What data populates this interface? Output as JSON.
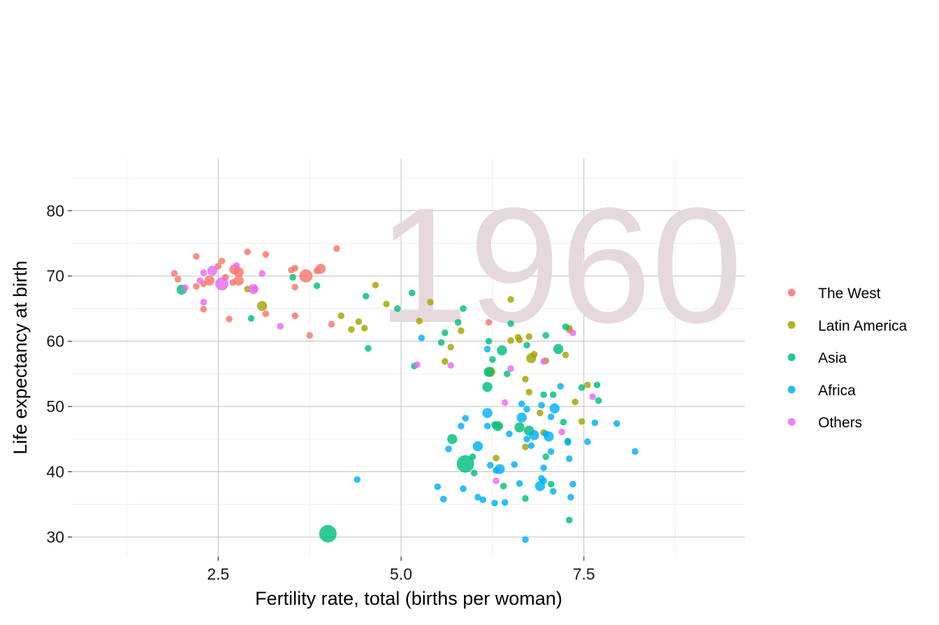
{
  "chart_data": {
    "type": "scatter",
    "xlabel": "Fertility rate, total (births per woman)",
    "ylabel": "Life expectancy at birth",
    "xlim": [
      0.5,
      9.7
    ],
    "ylim": [
      27,
      88
    ],
    "x_ticks": [
      2.5,
      5.0,
      7.5
    ],
    "x_tick_labels": [
      "2.5",
      "5.0",
      "7.5"
    ],
    "y_ticks": [
      30,
      40,
      50,
      60,
      70,
      80
    ],
    "y_tick_labels": [
      "30",
      "40",
      "50",
      "60",
      "70",
      "80"
    ],
    "grid": true,
    "legend_position": "right",
    "year_label": "1960",
    "colors": {
      "The West": "#f8766d",
      "Latin America": "#a3a500",
      "Asia": "#00bf7d",
      "Africa": "#00b0f6",
      "Others": "#e76bf3"
    },
    "series": [
      {
        "name": "The West",
        "points": [
          [
            1.9,
            70.4,
            1
          ],
          [
            1.95,
            69.5,
            1
          ],
          [
            2.2,
            73.0,
            1
          ],
          [
            2.2,
            68.4,
            1
          ],
          [
            2.3,
            68.8,
            1
          ],
          [
            2.3,
            64.9,
            1
          ],
          [
            2.38,
            69.3,
            2
          ],
          [
            2.5,
            71.5,
            1
          ],
          [
            2.55,
            72.3,
            1
          ],
          [
            2.6,
            69.8,
            1
          ],
          [
            2.65,
            63.4,
            1
          ],
          [
            2.7,
            69.0,
            1
          ],
          [
            2.72,
            71.0,
            2
          ],
          [
            2.78,
            69.3,
            2
          ],
          [
            2.78,
            70.6,
            2
          ],
          [
            2.9,
            73.7,
            1
          ],
          [
            3.0,
            68.0,
            1
          ],
          [
            3.15,
            64.2,
            1
          ],
          [
            3.15,
            73.3,
            1
          ],
          [
            3.5,
            70.9,
            1
          ],
          [
            3.55,
            71.2,
            1
          ],
          [
            3.55,
            68.3,
            1
          ],
          [
            3.55,
            63.9,
            1
          ],
          [
            3.7,
            70.0,
            3
          ],
          [
            3.75,
            60.9,
            1
          ],
          [
            3.85,
            70.8,
            1
          ],
          [
            3.9,
            71.1,
            2
          ],
          [
            4.05,
            62.6,
            1
          ],
          [
            4.12,
            74.2,
            1
          ],
          [
            6.2,
            62.9,
            1
          ],
          [
            7.3,
            61.7,
            1
          ]
        ]
      },
      {
        "name": "Latin America",
        "points": [
          [
            2.9,
            68.0,
            1
          ],
          [
            3.1,
            65.4,
            2
          ],
          [
            4.18,
            63.9,
            1
          ],
          [
            4.32,
            61.8,
            1
          ],
          [
            4.42,
            63.0,
            1
          ],
          [
            4.5,
            62.0,
            1
          ],
          [
            4.65,
            68.6,
            1
          ],
          [
            4.8,
            65.7,
            1
          ],
          [
            5.25,
            63.1,
            1
          ],
          [
            5.4,
            66.0,
            1
          ],
          [
            5.6,
            56.9,
            1
          ],
          [
            5.68,
            59.1,
            1
          ],
          [
            5.82,
            61.6,
            1
          ],
          [
            6.22,
            55.3,
            2
          ],
          [
            6.3,
            42.1,
            1
          ],
          [
            6.35,
            47.0,
            1
          ],
          [
            6.5,
            66.4,
            1
          ],
          [
            6.5,
            60.1,
            1
          ],
          [
            6.6,
            60.6,
            1
          ],
          [
            6.62,
            60.2,
            1
          ],
          [
            6.7,
            54.2,
            1
          ],
          [
            6.7,
            43.8,
            1
          ],
          [
            6.75,
            52.2,
            1
          ],
          [
            6.75,
            60.7,
            1
          ],
          [
            6.78,
            57.4,
            2
          ],
          [
            6.82,
            58.0,
            1
          ],
          [
            6.9,
            49.0,
            1
          ],
          [
            6.95,
            46.0,
            1
          ],
          [
            6.98,
            57.0,
            1
          ],
          [
            7.25,
            57.9,
            1
          ],
          [
            7.3,
            62.0,
            1
          ],
          [
            7.38,
            50.7,
            1
          ],
          [
            7.47,
            47.7,
            1
          ],
          [
            7.55,
            53.3,
            1
          ]
        ]
      },
      {
        "name": "Asia",
        "points": [
          [
            2.0,
            67.9,
            2
          ],
          [
            2.95,
            63.5,
            1
          ],
          [
            3.52,
            69.8,
            1
          ],
          [
            3.85,
            68.5,
            1
          ],
          [
            4.0,
            30.5,
            4
          ],
          [
            4.52,
            66.9,
            1
          ],
          [
            4.55,
            58.9,
            1
          ],
          [
            4.95,
            65.0,
            1
          ],
          [
            5.15,
            67.4,
            1
          ],
          [
            5.18,
            56.2,
            1
          ],
          [
            5.55,
            59.8,
            1
          ],
          [
            5.6,
            61.3,
            1
          ],
          [
            5.7,
            45.0,
            2
          ],
          [
            5.78,
            62.9,
            1
          ],
          [
            5.85,
            65.0,
            1
          ],
          [
            5.88,
            41.2,
            4
          ],
          [
            5.98,
            42.3,
            1
          ],
          [
            6.0,
            39.8,
            1
          ],
          [
            6.18,
            53.0,
            2
          ],
          [
            6.2,
            55.3,
            2
          ],
          [
            6.2,
            60.0,
            1
          ],
          [
            6.25,
            57.2,
            1
          ],
          [
            6.28,
            47.2,
            1
          ],
          [
            6.32,
            47.0,
            2
          ],
          [
            6.38,
            58.6,
            2
          ],
          [
            6.4,
            37.8,
            1
          ],
          [
            6.45,
            55.0,
            1
          ],
          [
            6.5,
            62.7,
            1
          ],
          [
            6.62,
            46.8,
            2
          ],
          [
            6.7,
            35.9,
            1
          ],
          [
            6.72,
            59.4,
            1
          ],
          [
            6.75,
            46.3,
            2
          ],
          [
            6.95,
            51.8,
            1
          ],
          [
            6.98,
            42.3,
            1
          ],
          [
            6.98,
            60.9,
            1
          ],
          [
            7.05,
            38.1,
            1
          ],
          [
            7.08,
            51.8,
            1
          ],
          [
            7.15,
            58.8,
            2
          ],
          [
            7.22,
            47.6,
            1
          ],
          [
            7.25,
            62.2,
            1
          ],
          [
            7.28,
            44.7,
            1
          ],
          [
            7.3,
            32.6,
            1
          ],
          [
            7.47,
            52.9,
            1
          ],
          [
            7.68,
            53.3,
            1
          ],
          [
            7.7,
            50.9,
            1
          ]
        ]
      },
      {
        "name": "Africa",
        "points": [
          [
            4.4,
            38.8,
            1
          ],
          [
            5.28,
            60.5,
            1
          ],
          [
            5.5,
            37.7,
            1
          ],
          [
            5.58,
            35.8,
            1
          ],
          [
            5.65,
            43.5,
            1
          ],
          [
            5.82,
            47.0,
            1
          ],
          [
            5.85,
            37.4,
            1
          ],
          [
            5.88,
            48.2,
            1
          ],
          [
            6.05,
            43.9,
            2
          ],
          [
            6.05,
            36.1,
            1
          ],
          [
            6.12,
            35.7,
            1
          ],
          [
            6.18,
            47.0,
            1
          ],
          [
            6.18,
            58.8,
            1
          ],
          [
            6.18,
            49.0,
            2
          ],
          [
            6.22,
            41.0,
            1
          ],
          [
            6.28,
            35.2,
            1
          ],
          [
            6.3,
            40.2,
            1
          ],
          [
            6.35,
            40.4,
            2
          ],
          [
            6.42,
            35.3,
            1
          ],
          [
            6.48,
            45.8,
            1
          ],
          [
            6.55,
            41.1,
            1
          ],
          [
            6.62,
            38.2,
            1
          ],
          [
            6.65,
            48.3,
            2
          ],
          [
            6.65,
            50.4,
            1
          ],
          [
            6.7,
            29.6,
            1
          ],
          [
            6.72,
            49.6,
            1
          ],
          [
            6.72,
            45.0,
            1
          ],
          [
            6.78,
            44.0,
            1
          ],
          [
            6.82,
            45.6,
            2
          ],
          [
            6.9,
            37.8,
            2
          ],
          [
            6.92,
            39.0,
            1
          ],
          [
            6.92,
            50.2,
            1
          ],
          [
            6.95,
            38.6,
            1
          ],
          [
            6.95,
            40.6,
            1
          ],
          [
            6.98,
            45.8,
            1
          ],
          [
            7.02,
            45.4,
            2
          ],
          [
            7.05,
            48.4,
            1
          ],
          [
            7.05,
            43.1,
            1
          ],
          [
            7.08,
            37.0,
            1
          ],
          [
            7.1,
            49.7,
            2
          ],
          [
            7.18,
            53.1,
            1
          ],
          [
            7.28,
            44.5,
            1
          ],
          [
            7.3,
            42.0,
            1
          ],
          [
            7.32,
            36.1,
            1
          ],
          [
            7.35,
            38.1,
            1
          ],
          [
            7.55,
            44.6,
            1
          ],
          [
            7.65,
            47.5,
            1
          ],
          [
            7.95,
            47.4,
            1
          ],
          [
            8.2,
            43.1,
            1
          ]
        ]
      },
      {
        "name": "Others",
        "points": [
          [
            2.05,
            68.2,
            1
          ],
          [
            2.25,
            69.3,
            1
          ],
          [
            2.3,
            70.5,
            1
          ],
          [
            2.3,
            66.0,
            1
          ],
          [
            2.42,
            70.8,
            2
          ],
          [
            2.55,
            68.8,
            3
          ],
          [
            2.75,
            71.6,
            1
          ],
          [
            2.98,
            68.0,
            2
          ],
          [
            3.1,
            70.4,
            1
          ],
          [
            3.35,
            62.3,
            1
          ],
          [
            5.22,
            56.4,
            1
          ],
          [
            5.68,
            56.3,
            1
          ],
          [
            6.3,
            38.6,
            1
          ],
          [
            6.42,
            50.6,
            1
          ],
          [
            6.5,
            55.8,
            1
          ],
          [
            6.95,
            56.9,
            1
          ],
          [
            7.2,
            46.1,
            1
          ],
          [
            7.35,
            61.3,
            1
          ],
          [
            7.62,
            51.5,
            1
          ]
        ]
      }
    ]
  }
}
